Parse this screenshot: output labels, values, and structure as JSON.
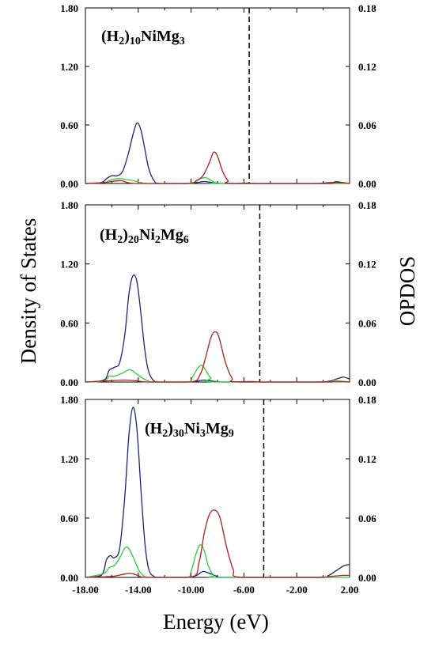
{
  "chart_data": {
    "type": "line",
    "xlabel": "Energy (eV)",
    "ylabel_left": "Density of States",
    "ylabel_right": "OPDOS",
    "xlim": [
      -18,
      2
    ],
    "x_ticks": [
      "-18.00",
      "-14.00",
      "-10.00",
      "-6.00",
      "-2.00",
      "2.00"
    ],
    "x_tick_values": [
      -18,
      -14,
      -10,
      -6,
      -2,
      2
    ],
    "ylim_left": [
      0,
      1.8
    ],
    "ylim_right": [
      0,
      0.18
    ],
    "left_ticks": [
      "0.00",
      "0.60",
      "1.20",
      "1.80"
    ],
    "left_tick_values": [
      0,
      0.6,
      1.2,
      1.8
    ],
    "right_ticks": [
      "0.00",
      "0.06",
      "0.12",
      "0.18"
    ],
    "right_tick_values": [
      0,
      0.06,
      0.12,
      0.18
    ],
    "colors": {
      "blue": "#1a237e",
      "red": "#b71c1c",
      "green": "#2ecc40",
      "axis": "#000000"
    },
    "panels": [
      {
        "label": {
          "pre": "(H",
          "s1": "2",
          "mid1": ")",
          "s2": "10",
          "mid2": "NiMg",
          "s3": "3",
          "post": ""
        },
        "fermi": -5.6,
        "series": [
          {
            "color": "blue",
            "values": [
              [
                -18,
                0
              ],
              [
                -16.8,
                0.01
              ],
              [
                -16.4,
                0.05
              ],
              [
                -16.0,
                0.08
              ],
              [
                -15.6,
                0.08
              ],
              [
                -15.2,
                0.12
              ],
              [
                -14.8,
                0.28
              ],
              [
                -14.4,
                0.5
              ],
              [
                -14.1,
                0.62
              ],
              [
                -13.8,
                0.55
              ],
              [
                -13.5,
                0.35
              ],
              [
                -13.2,
                0.15
              ],
              [
                -12.8,
                0.03
              ],
              [
                -12.4,
                0
              ],
              [
                -10.5,
                0
              ],
              [
                -9.6,
                0.01
              ],
              [
                -9.0,
                0.02
              ],
              [
                -8.4,
                0.01
              ],
              [
                -7.6,
                0
              ],
              [
                -6.5,
                0
              ],
              [
                -5.8,
                0.005
              ],
              [
                -5.0,
                0
              ],
              [
                -1.0,
                0
              ],
              [
                0.0,
                0.005
              ],
              [
                0.7,
                0.01
              ],
              [
                1.2,
                0.01
              ],
              [
                1.6,
                0.005
              ],
              [
                2,
                0
              ]
            ]
          },
          {
            "color": "green",
            "values": [
              [
                -18,
                0
              ],
              [
                -16.6,
                0.01
              ],
              [
                -16.0,
                0.04
              ],
              [
                -15.4,
                0.05
              ],
              [
                -14.9,
                0.04
              ],
              [
                -14.4,
                0.03
              ],
              [
                -13.8,
                0.01
              ],
              [
                -13.2,
                0
              ],
              [
                -10.4,
                0
              ],
              [
                -9.7,
                0.02
              ],
              [
                -9.3,
                0.05
              ],
              [
                -8.9,
                0.06
              ],
              [
                -8.6,
                0.04
              ],
              [
                -8.2,
                0.01
              ],
              [
                -7.6,
                0
              ],
              [
                2,
                0
              ]
            ]
          },
          {
            "color": "red",
            "values": [
              [
                -18,
                0
              ],
              [
                -16.6,
                0.001
              ],
              [
                -15.4,
                0.003
              ],
              [
                -14.8,
                0.001
              ],
              [
                -14.0,
                0
              ],
              [
                -10.2,
                0
              ],
              [
                -9.6,
                0.003
              ],
              [
                -9.1,
                0.008
              ],
              [
                -8.6,
                0.022
              ],
              [
                -8.3,
                0.032
              ],
              [
                -8.0,
                0.028
              ],
              [
                -7.6,
                0.012
              ],
              [
                -7.2,
                0.003
              ],
              [
                -6.8,
                0
              ],
              [
                0.0,
                0
              ],
              [
                0.7,
                0.001
              ],
              [
                1.0,
                0.002
              ],
              [
                1.5,
                0.001
              ],
              [
                2,
                0
              ]
            ]
          }
        ]
      },
      {
        "label": {
          "pre": "(H",
          "s1": "2",
          "mid1": ")",
          "s2": "20",
          "mid2": "Ni",
          "s3": "2",
          "post": "Mg6"
        },
        "fermi": -4.8,
        "series": [
          {
            "color": "blue",
            "values": [
              [
                -18,
                0
              ],
              [
                -16.6,
                0.02
              ],
              [
                -16.2,
                0.12
              ],
              [
                -15.8,
                0.15
              ],
              [
                -15.4,
                0.2
              ],
              [
                -15.0,
                0.5
              ],
              [
                -14.7,
                0.9
              ],
              [
                -14.4,
                1.08
              ],
              [
                -14.1,
                1.02
              ],
              [
                -13.8,
                0.7
              ],
              [
                -13.5,
                0.32
              ],
              [
                -13.2,
                0.1
              ],
              [
                -12.8,
                0.01
              ],
              [
                -12.4,
                0
              ],
              [
                -10.3,
                0
              ],
              [
                -9.5,
                0.01
              ],
              [
                -9.0,
                0.02
              ],
              [
                -8.4,
                0.01
              ],
              [
                -7.6,
                0
              ],
              [
                -5.5,
                0.005
              ],
              [
                -4.5,
                0
              ],
              [
                -0.4,
                0
              ],
              [
                0.5,
                0.01
              ],
              [
                1.0,
                0.03
              ],
              [
                1.5,
                0.05
              ],
              [
                1.8,
                0.04
              ],
              [
                2,
                0.03
              ]
            ]
          },
          {
            "color": "green",
            "values": [
              [
                -18,
                0
              ],
              [
                -16.6,
                0.01
              ],
              [
                -16.2,
                0.06
              ],
              [
                -15.8,
                0.06
              ],
              [
                -15.2,
                0.09
              ],
              [
                -14.8,
                0.12
              ],
              [
                -14.5,
                0.12
              ],
              [
                -14.0,
                0.07
              ],
              [
                -13.4,
                0.02
              ],
              [
                -12.8,
                0
              ],
              [
                -10.3,
                0
              ],
              [
                -9.9,
                0.05
              ],
              [
                -9.5,
                0.14
              ],
              [
                -9.2,
                0.17
              ],
              [
                -8.9,
                0.12
              ],
              [
                -8.5,
                0.04
              ],
              [
                -8.1,
                0
              ],
              [
                2,
                0
              ]
            ]
          },
          {
            "color": "red",
            "values": [
              [
                -18,
                0
              ],
              [
                -16.6,
                0.001
              ],
              [
                -15.0,
                0.002
              ],
              [
                -14.0,
                0.001
              ],
              [
                -13.2,
                0
              ],
              [
                -10.0,
                0
              ],
              [
                -9.3,
                0.008
              ],
              [
                -8.9,
                0.025
              ],
              [
                -8.5,
                0.045
              ],
              [
                -8.2,
                0.051
              ],
              [
                -7.9,
                0.046
              ],
              [
                -7.4,
                0.02
              ],
              [
                -6.9,
                0.004
              ],
              [
                -6.4,
                0
              ],
              [
                0.0,
                0
              ],
              [
                1.0,
                0.001
              ],
              [
                2,
                0
              ]
            ]
          }
        ]
      },
      {
        "label": {
          "pre": "(H",
          "s1": "2",
          "mid1": ")",
          "s2": "30",
          "mid2": "Ni",
          "s3": "3",
          "post": "Mg9"
        },
        "fermi": -4.5,
        "series": [
          {
            "color": "blue",
            "values": [
              [
                -18,
                0
              ],
              [
                -16.8,
                0.02
              ],
              [
                -16.4,
                0.18
              ],
              [
                -16.1,
                0.22
              ],
              [
                -15.8,
                0.2
              ],
              [
                -15.4,
                0.3
              ],
              [
                -15.0,
                0.85
              ],
              [
                -14.7,
                1.45
              ],
              [
                -14.4,
                1.72
              ],
              [
                -14.1,
                1.5
              ],
              [
                -13.8,
                0.9
              ],
              [
                -13.5,
                0.35
              ],
              [
                -13.2,
                0.08
              ],
              [
                -12.8,
                0.01
              ],
              [
                -12.4,
                0
              ],
              [
                -10.3,
                0
              ],
              [
                -9.6,
                0.02
              ],
              [
                -9.1,
                0.06
              ],
              [
                -8.6,
                0.04
              ],
              [
                -8.0,
                0.01
              ],
              [
                -7.4,
                0
              ],
              [
                -0.4,
                0
              ],
              [
                0.4,
                0.02
              ],
              [
                1.0,
                0.07
              ],
              [
                1.6,
                0.12
              ],
              [
                2,
                0.13
              ]
            ]
          },
          {
            "color": "green",
            "values": [
              [
                -18,
                0
              ],
              [
                -16.6,
                0.04
              ],
              [
                -16.2,
                0.1
              ],
              [
                -15.8,
                0.12
              ],
              [
                -15.4,
                0.2
              ],
              [
                -15.0,
                0.3
              ],
              [
                -14.7,
                0.29
              ],
              [
                -14.3,
                0.18
              ],
              [
                -13.9,
                0.06
              ],
              [
                -13.5,
                0.01
              ],
              [
                -13.0,
                0
              ],
              [
                -10.4,
                0
              ],
              [
                -10.0,
                0.06
              ],
              [
                -9.6,
                0.25
              ],
              [
                -9.3,
                0.33
              ],
              [
                -9.0,
                0.27
              ],
              [
                -8.7,
                0.12
              ],
              [
                -8.3,
                0.02
              ],
              [
                -7.8,
                0
              ],
              [
                2,
                0
              ]
            ]
          },
          {
            "color": "red",
            "values": [
              [
                -18,
                0
              ],
              [
                -16.0,
                0.001
              ],
              [
                -15.2,
                0.003
              ],
              [
                -14.6,
                0.004
              ],
              [
                -14.0,
                0.002
              ],
              [
                -13.4,
                0
              ],
              [
                -10.0,
                0
              ],
              [
                -9.4,
                0.015
              ],
              [
                -9.0,
                0.045
              ],
              [
                -8.6,
                0.064
              ],
              [
                -8.2,
                0.068
              ],
              [
                -7.8,
                0.06
              ],
              [
                -7.3,
                0.03
              ],
              [
                -6.8,
                0.008
              ],
              [
                -6.2,
                0
              ],
              [
                -0.5,
                0
              ],
              [
                0.5,
                0.001
              ],
              [
                1.5,
                0.002
              ],
              [
                2,
                0.002
              ]
            ]
          }
        ]
      }
    ]
  }
}
